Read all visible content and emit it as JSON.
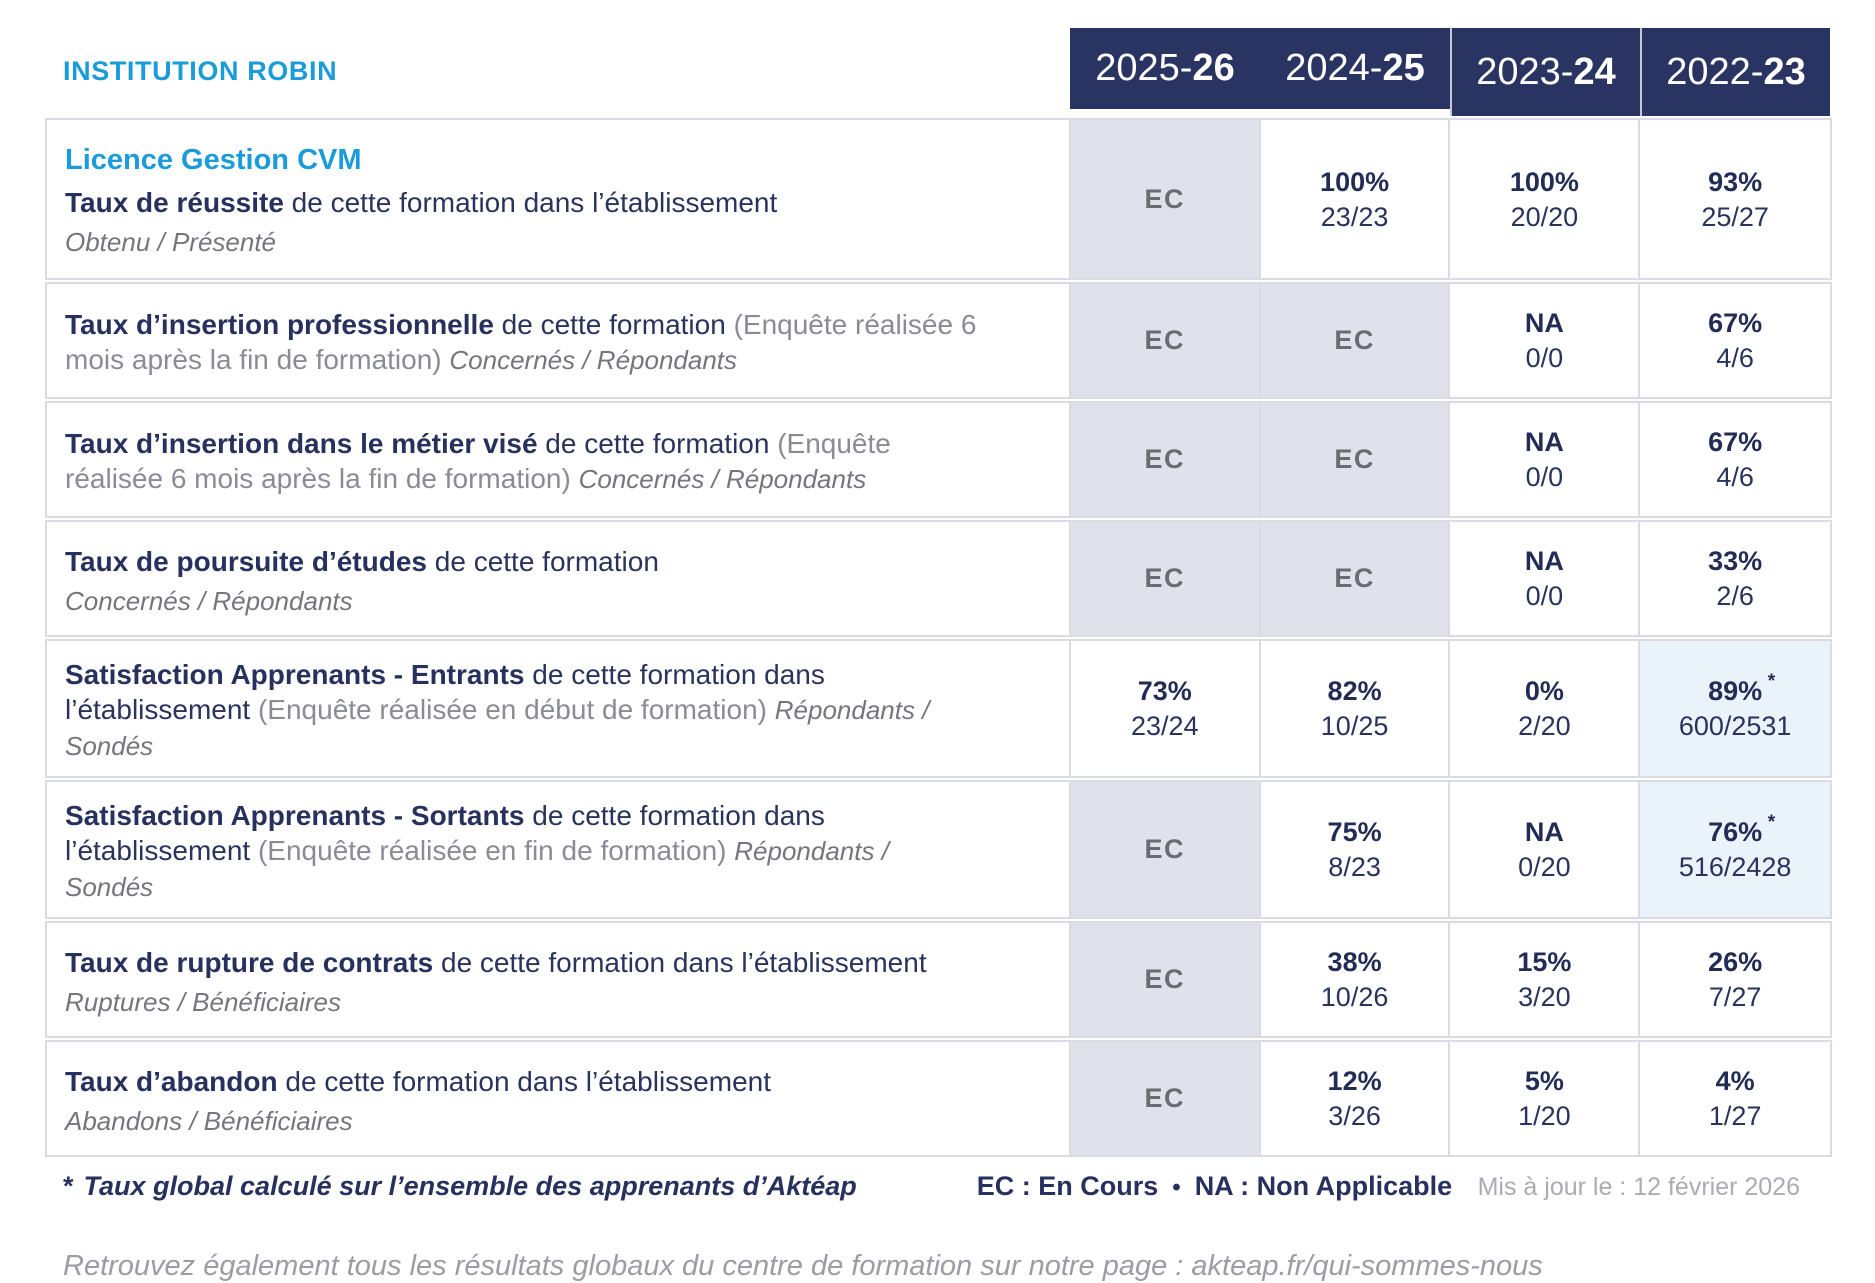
{
  "header": {
    "institution": "INSTITUTION ROBIN",
    "years": [
      {
        "prefix": "2025-",
        "suffix": "26"
      },
      {
        "prefix": "2024-",
        "suffix": "25"
      },
      {
        "prefix": "2023-",
        "suffix": "24"
      },
      {
        "prefix": "2022-",
        "suffix": "23"
      }
    ]
  },
  "program_title": "Licence Gestion CVM",
  "rows": [
    {
      "title": "Taux de réussite",
      "desc": " de cette formation dans l’établissement",
      "sub": "Obtenu / Présenté",
      "values": [
        {
          "main": "EC"
        },
        {
          "main": "100%",
          "detail": "23/23"
        },
        {
          "main": "100%",
          "detail": "20/20"
        },
        {
          "main": "93%",
          "detail": "25/27"
        }
      ]
    },
    {
      "title": "Taux d’insertion professionnelle",
      "desc": " de cette formation ",
      "paren": "(Enquête réalisée 6 mois après la fin de formation) ",
      "sub": "Concernés / Répondants",
      "values": [
        {
          "main": "EC"
        },
        {
          "main": "EC"
        },
        {
          "main": "NA",
          "detail": "0/0"
        },
        {
          "main": "67%",
          "detail": "4/6"
        }
      ]
    },
    {
      "title": "Taux d’insertion dans le métier visé",
      "desc": " de cette formation ",
      "paren": "(Enquête réalisée 6 mois après la fin de formation) ",
      "sub": "Concernés / Répondants",
      "values": [
        {
          "main": "EC"
        },
        {
          "main": "EC"
        },
        {
          "main": "NA",
          "detail": "0/0"
        },
        {
          "main": "67%",
          "detail": "4/6"
        }
      ]
    },
    {
      "title": "Taux de poursuite d’études",
      "desc": " de cette formation",
      "sub": "Concernés / Répondants",
      "values": [
        {
          "main": "EC"
        },
        {
          "main": "EC"
        },
        {
          "main": "NA",
          "detail": "0/0"
        },
        {
          "main": "33%",
          "detail": "2/6"
        }
      ]
    },
    {
      "title": "Satisfaction Apprenants - Entrants",
      "desc": " de cette formation dans l’établissement ",
      "paren": "(Enquête réalisée en début de formation) ",
      "sub": "Répondants / Sondés",
      "values": [
        {
          "main": "73%",
          "detail": "23/24"
        },
        {
          "main": "82%",
          "detail": "10/25"
        },
        {
          "main": "0%",
          "detail": "2/20"
        },
        {
          "main": "89%",
          "star": "*",
          "detail": "600/2531"
        }
      ]
    },
    {
      "title": "Satisfaction Apprenants - Sortants",
      "desc": " de cette formation dans l’établissement ",
      "paren": "(Enquête réalisée en fin de formation) ",
      "sub": "Répondants / Sondés",
      "values": [
        {
          "main": "EC"
        },
        {
          "main": "75%",
          "detail": "8/23"
        },
        {
          "main": "NA",
          "detail": "0/20"
        },
        {
          "main": "76%",
          "star": "*",
          "detail": "516/2428"
        }
      ]
    },
    {
      "title": "Taux de rupture de contrats",
      "desc": " de cette formation dans l’établissement",
      "sub": "Ruptures / Bénéficiaires",
      "values": [
        {
          "main": "EC"
        },
        {
          "main": "38%",
          "detail": "10/26"
        },
        {
          "main": "15%",
          "detail": "3/20"
        },
        {
          "main": "26%",
          "detail": "7/27"
        }
      ]
    },
    {
      "title": "Taux d’abandon",
      "desc": " de cette formation dans l’établissement",
      "sub": "Abandons / Bénéficiaires",
      "values": [
        {
          "main": "EC"
        },
        {
          "main": "12%",
          "detail": "3/26"
        },
        {
          "main": "5%",
          "detail": "1/20"
        },
        {
          "main": "4%",
          "detail": "1/27"
        }
      ]
    }
  ],
  "footer": {
    "footnote_marker": "*",
    "footnote_text": "Taux global calculé sur l’ensemble des apprenants d’Aktéap",
    "legend_ec": "EC : En Cours",
    "legend_sep": "•",
    "legend_na": "NA : Non Applicable",
    "updated": "Mis à jour le : 12 février 2026",
    "bottom_note": "Retrouvez également tous les résultats globaux du centre de formation sur notre page : akteap.fr/qui-sommes-nous"
  },
  "colors": {
    "accent_blue": "#1B9CD8",
    "header_navy": "#2A3462",
    "text_navy": "#28315E",
    "ec_cell_bg": "#E1E1EB",
    "highlight_cell_bg": "#EAF3FA"
  }
}
